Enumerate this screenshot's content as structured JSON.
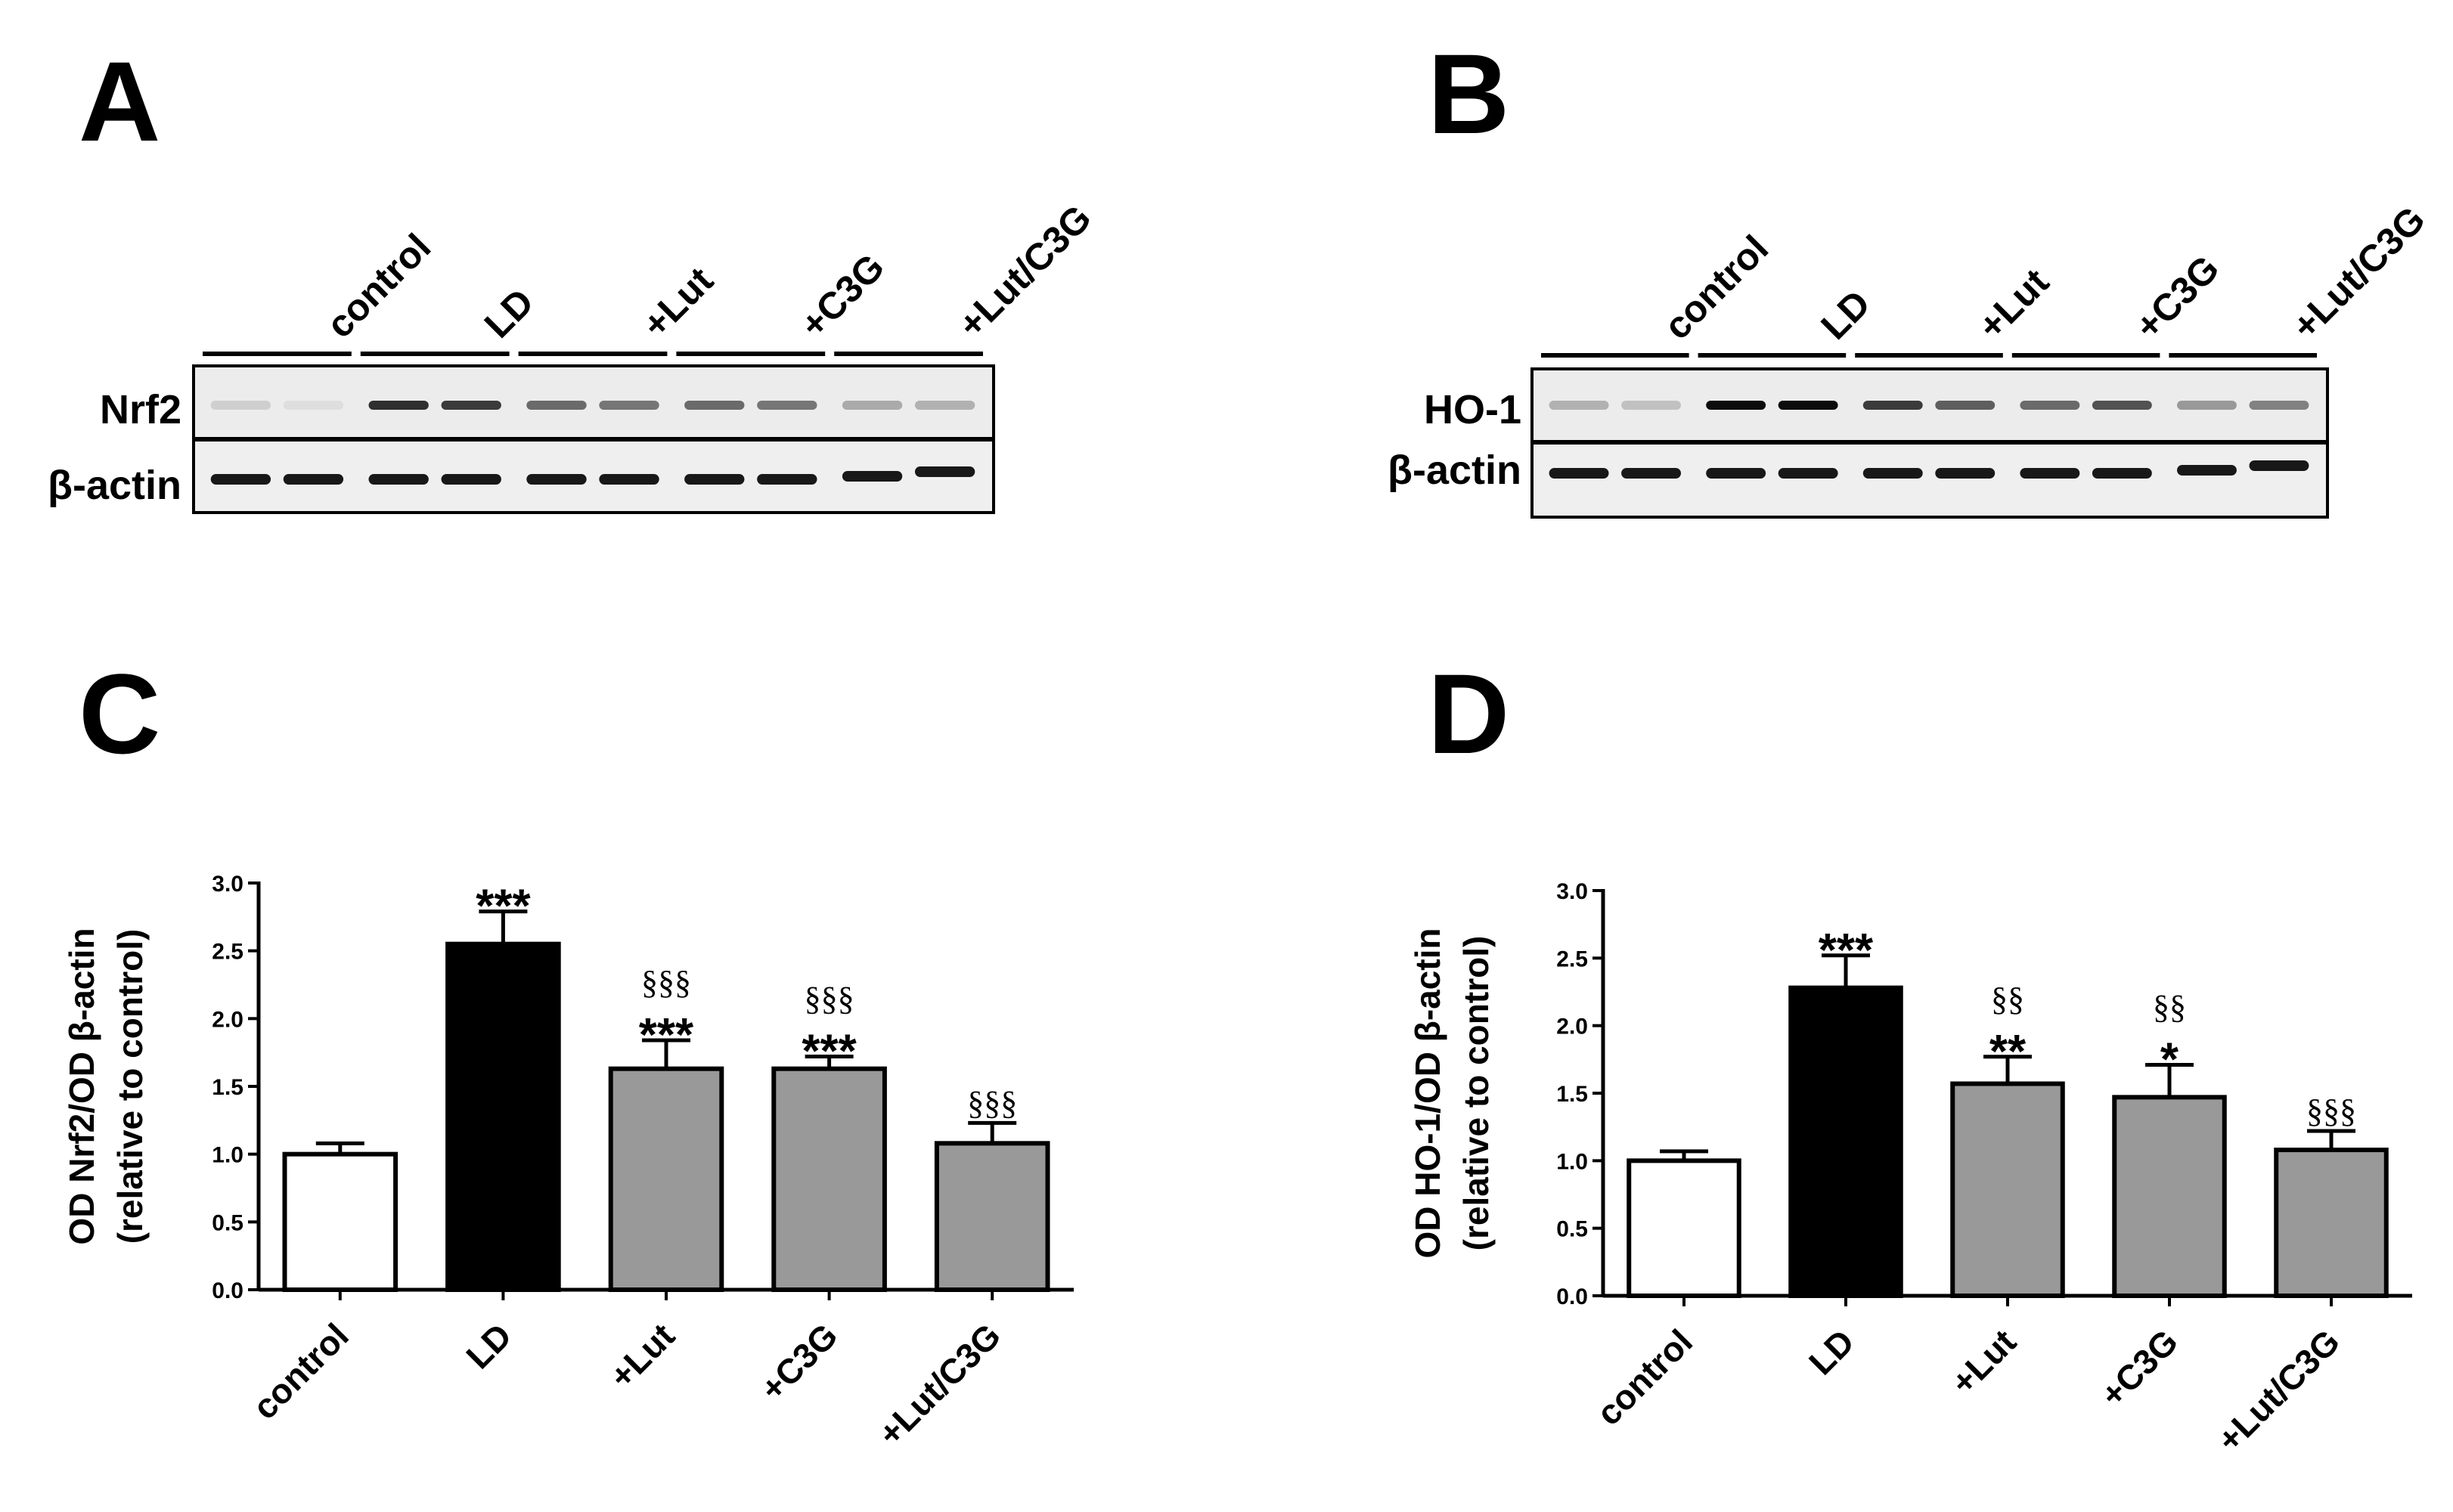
{
  "panels": {
    "a": "A",
    "b": "B",
    "c": "C",
    "d": "D"
  },
  "blots": [
    {
      "lanes": [
        "control",
        "LD",
        "+Lut",
        "+C3G",
        "+Lut/C3G"
      ],
      "row1_label": "Nrf2",
      "row2_label": "β-actin"
    },
    {
      "lanes": [
        "control",
        "LD",
        "+Lut",
        "+C3G",
        "+Lut/C3G"
      ],
      "row1_label": "HO-1",
      "row2_label": "β-actin"
    }
  ],
  "chart_data": [
    {
      "type": "bar",
      "categories": [
        "control",
        "LD",
        "+Lut",
        "+C3G",
        "+Lut/C3G"
      ],
      "values": [
        1.0,
        2.55,
        1.63,
        1.63,
        1.08
      ],
      "errors": [
        0.08,
        0.24,
        0.21,
        0.09,
        0.15
      ],
      "colors": [
        "#ffffff",
        "#000000",
        "#999999",
        "#999999",
        "#999999"
      ],
      "significance": [
        "",
        "***",
        "***",
        "***",
        ""
      ],
      "significance2": [
        "",
        "",
        "§§§",
        "§§§",
        "§§§"
      ],
      "ylabel_line1": "OD Nrf2/OD β-actin",
      "ylabel_line2": "(relative to control)",
      "ylim": [
        0,
        3.0
      ],
      "yticks": [
        "0.0",
        "0.5",
        "1.0",
        "1.5",
        "2.0",
        "2.5",
        "3.0"
      ]
    },
    {
      "type": "bar",
      "categories": [
        "control",
        "LD",
        "+Lut",
        "+C3G",
        "+Lut/C3G"
      ],
      "values": [
        1.0,
        2.28,
        1.57,
        1.47,
        1.08
      ],
      "errors": [
        0.07,
        0.24,
        0.2,
        0.24,
        0.14
      ],
      "colors": [
        "#ffffff",
        "#000000",
        "#999999",
        "#999999",
        "#999999"
      ],
      "significance": [
        "",
        "***",
        "**",
        "*",
        ""
      ],
      "significance2": [
        "",
        "",
        "§§",
        "§§",
        "§§§"
      ],
      "ylabel_line1": "OD HO-1/OD β-actin",
      "ylabel_line2": "(relative to control)",
      "ylim": [
        0,
        3.0
      ],
      "yticks": [
        "0.0",
        "0.5",
        "1.0",
        "1.5",
        "2.0",
        "2.5",
        "3.0"
      ]
    }
  ]
}
